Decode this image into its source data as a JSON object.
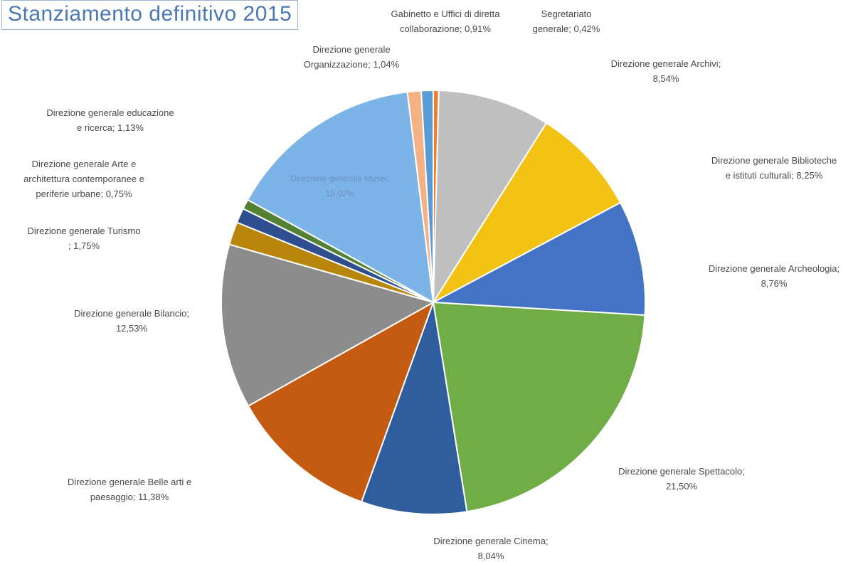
{
  "chart_data": {
    "type": "pie",
    "title": "Stanziamento definitivo 2015",
    "slices": [
      {
        "name": "Segretariato generale",
        "value": 0.42,
        "label": "0,42%",
        "color": "#ED7D31",
        "label_lines": [
          "Segretariato",
          "generale; 0,42%"
        ]
      },
      {
        "name": "Direzione generale Archivi",
        "value": 8.54,
        "label": "8,54%",
        "color": "#BFBFBF",
        "label_lines": [
          "Direzione generale Archivi;",
          "8,54%"
        ]
      },
      {
        "name": "Direzione generale Biblioteche e istituti culturali",
        "value": 8.25,
        "label": "8,25%",
        "color": "#F2C314",
        "label_lines": [
          "Direzione generale Biblioteche",
          "e istituti culturali; 8,25%"
        ]
      },
      {
        "name": "Direzione generale Archeologia",
        "value": 8.76,
        "label": "8,76%",
        "color": "#4472C4",
        "label_lines": [
          "Direzione generale Archeologia;",
          "8,76%"
        ]
      },
      {
        "name": "Direzione generale Spettacolo",
        "value": 21.5,
        "label": "21,50%",
        "color": "#70AD47",
        "label_lines": [
          "Direzione generale Spettacolo;",
          "21,50%"
        ]
      },
      {
        "name": "Direzione generale Cinema",
        "value": 8.04,
        "label": "8,04%",
        "color": "#2F5D9E",
        "label_lines": [
          "Direzione generale Cinema;",
          "8,04%"
        ]
      },
      {
        "name": "Direzione generale Belle arti e paesaggio",
        "value": 11.38,
        "label": "11,38%",
        "color": "#C55A11",
        "label_lines": [
          "Direzione generale Belle arti e",
          "paesaggio; 11,38%"
        ]
      },
      {
        "name": "Direzione generale Bilancio",
        "value": 12.53,
        "label": "12,53%",
        "color": "#8C8C8C",
        "label_lines": [
          "Direzione generale Bilancio;",
          "12,53%"
        ]
      },
      {
        "name": "Direzione generale Turismo",
        "value": 1.75,
        "label": "1,75%",
        "color": "#B8860B",
        "label_lines": [
          "Direzione generale Turismo",
          "; 1,75%"
        ]
      },
      {
        "name": "Direzione generale educazione e ricerca",
        "value": 1.13,
        "label": "1,13%",
        "color": "#2E4E8F",
        "label_lines": [
          "Direzione generale educazione",
          "e ricerca; 1,13%"
        ]
      },
      {
        "name": "Direzione generale Arte e architettura contemporanee e periferie urbane",
        "value": 0.75,
        "label": "0,75%",
        "color": "#548235",
        "label_lines": [
          "Direzione generale Arte e",
          "architettura contemporanee e",
          "periferie urbane; 0,75%"
        ]
      },
      {
        "name": "Direzione generale Musei",
        "value": 15.02,
        "label": "15,02%",
        "color": "#7CB4E8",
        "label_lines": [
          "Direzione generale Musei;",
          "15,02%"
        ]
      },
      {
        "name": "Direzione generale Organizzazione",
        "value": 1.04,
        "label": "1,04%",
        "color": "#F4B183",
        "label_lines": [
          "Direzione generale",
          "Organizzazione; 1,04%"
        ]
      },
      {
        "name": "Gabinetto e Uffici di diretta collaborazione",
        "value": 0.91,
        "label": "0,91%",
        "color": "#5B9BD5",
        "label_lines": [
          "Gabinetto e Uffici di diretta",
          "collaborazione; 0,91%"
        ]
      }
    ]
  }
}
